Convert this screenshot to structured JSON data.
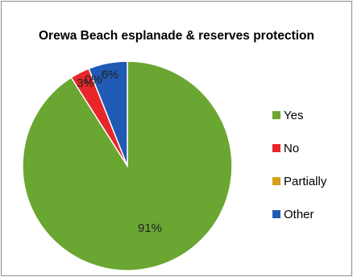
{
  "chart_data": {
    "type": "pie",
    "title": "Orewa Beach esplanade & reserves protection",
    "categories": [
      "Yes",
      "No",
      "Partially",
      "Other"
    ],
    "values": [
      91,
      3,
      0,
      6
    ],
    "data_labels": [
      "91%",
      "3%",
      "0%",
      "6%"
    ],
    "colors": [
      "#6aa632",
      "#e8262a",
      "#d4a017",
      "#1f5bb4"
    ],
    "legend_position": "right"
  }
}
